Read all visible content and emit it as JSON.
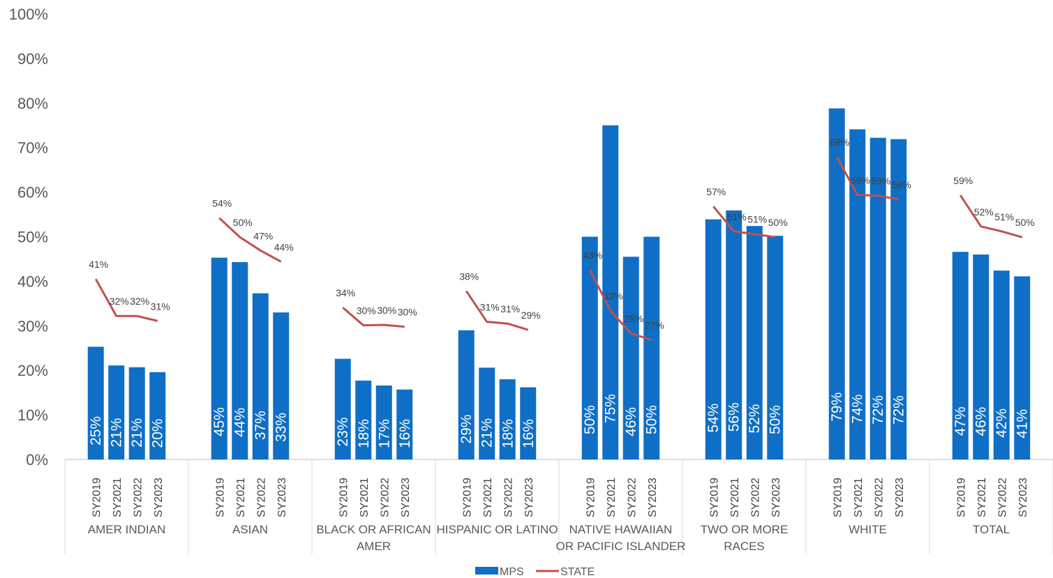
{
  "chart_data": {
    "type": "bar",
    "title": "",
    "ylim": [
      0,
      100
    ],
    "y_ticks": [
      "0%",
      "10%",
      "20%",
      "30%",
      "40%",
      "50%",
      "60%",
      "70%",
      "80%",
      "90%",
      "100%"
    ],
    "years": [
      "SY2019",
      "SY2021",
      "SY2022",
      "SY2023"
    ],
    "groups": [
      {
        "label": [
          "AMER INDIAN"
        ],
        "mps": [
          25.3,
          21.1,
          20.7,
          19.6
        ],
        "state": [
          40.5,
          32.2,
          32.2,
          31.1
        ],
        "mps_labels": [
          "25%",
          "21%",
          "21%",
          "20%"
        ],
        "state_labels": [
          "41%",
          "32%",
          "32%",
          "31%"
        ]
      },
      {
        "label": [
          "ASIAN"
        ],
        "mps": [
          45.3,
          44.3,
          37.3,
          33.0
        ],
        "state": [
          54.2,
          49.9,
          46.9,
          44.4
        ],
        "mps_labels": [
          "45%",
          "44%",
          "37%",
          "33%"
        ],
        "state_labels": [
          "54%",
          "50%",
          "47%",
          "44%"
        ]
      },
      {
        "label": [
          "BLACK OR AFRICAN",
          "AMER"
        ],
        "mps": [
          22.6,
          17.7,
          16.6,
          15.7
        ],
        "state": [
          34.1,
          30.1,
          30.2,
          29.8
        ],
        "mps_labels": [
          "23%",
          "18%",
          "17%",
          "16%"
        ],
        "state_labels": [
          "34%",
          "30%",
          "30%",
          "30%"
        ]
      },
      {
        "label": [
          "HISPANIC OR LATINO"
        ],
        "mps": [
          29.0,
          20.6,
          18.0,
          16.2
        ],
        "state": [
          37.8,
          30.9,
          30.5,
          29.1
        ],
        "mps_labels": [
          "29%",
          "21%",
          "18%",
          "16%"
        ],
        "state_labels": [
          "38%",
          "31%",
          "31%",
          "29%"
        ]
      },
      {
        "label": [
          "NATIVE HAWAIIAN",
          "OR PACIFIC ISLANDER"
        ],
        "mps": [
          50.0,
          75.0,
          45.5,
          50.0
        ],
        "state": [
          42.6,
          33.4,
          28.3,
          26.8
        ],
        "mps_labels": [
          "50%",
          "75%",
          "46%",
          "50%"
        ],
        "state_labels": [
          "43%",
          "33%",
          "28%",
          "27%"
        ]
      },
      {
        "label": [
          "TWO OR MORE",
          "RACES"
        ],
        "mps": [
          53.9,
          55.9,
          52.4,
          50.2
        ],
        "state": [
          56.8,
          51.2,
          50.6,
          49.9
        ],
        "mps_labels": [
          "54%",
          "56%",
          "52%",
          "50%"
        ],
        "state_labels": [
          "57%",
          "51%",
          "51%",
          "50%"
        ]
      },
      {
        "label": [
          "WHITE"
        ],
        "mps": [
          78.8,
          74.1,
          72.2,
          71.9
        ],
        "state": [
          67.9,
          59.4,
          59.2,
          58.4
        ],
        "mps_labels": [
          "79%",
          "74%",
          "72%",
          "72%"
        ],
        "state_labels": [
          "68%",
          "59%",
          "59%",
          "58%"
        ]
      },
      {
        "label": [
          "TOTAL"
        ],
        "mps": [
          46.6,
          46.0,
          42.4,
          41.1
        ],
        "state": [
          59.3,
          52.3,
          51.2,
          49.9
        ],
        "mps_labels": [
          "47%",
          "46%",
          "42%",
          "41%"
        ],
        "state_labels": [
          "59%",
          "52%",
          "51%",
          "50%"
        ]
      }
    ],
    "series": [
      {
        "name": "MPS",
        "type": "bar",
        "color": "#0f6fc6"
      },
      {
        "name": "STATE",
        "type": "line",
        "color": "#c0504d"
      }
    ],
    "legend_position": "bottom-center",
    "grid": false
  }
}
